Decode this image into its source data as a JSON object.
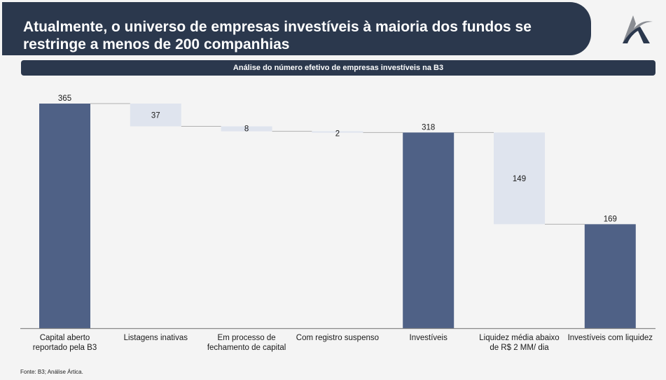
{
  "header": {
    "title": "Atualmente, o universo de empresas investíveis à maioria dos fundos se restringe a menos de 200 companhias",
    "logo_icon": "artica-logo-icon"
  },
  "subtitle": "Análise do número efetivo de empresas investíveis na B3",
  "footer": {
    "source": "Fonte: B3; Análise Ártica."
  },
  "colors": {
    "header_bg": "#2b384d",
    "total_bar": "#4f6186",
    "delta_bar": "#dfe4ee",
    "connector": "#b0b0b0",
    "axis": "#888888"
  },
  "chart_data": {
    "type": "waterfall",
    "title": "Análise do número efetivo de empresas investíveis na B3",
    "categories": [
      "Capital aberto reportado pela B3",
      "Listagens inativas",
      "Em processo de fechamento de capital",
      "Com registro suspenso",
      "Investíveis",
      "Liquidez média abaixo de R$ 2 MM/ dia",
      "Investíveis com liquidez"
    ],
    "category_lines": [
      [
        "Capital aberto",
        "reportado pela B3"
      ],
      [
        "Listagens inativas"
      ],
      [
        "Em processo de",
        "fechamento de capital"
      ],
      [
        "Com registro suspenso"
      ],
      [
        "Investíveis"
      ],
      [
        "Liquidez média abaixo",
        "de R$ 2 MM/ dia"
      ],
      [
        "Investíveis com liquidez"
      ]
    ],
    "values": [
      365,
      37,
      8,
      2,
      318,
      149,
      169
    ],
    "labels": [
      "365",
      "37",
      "8",
      "2",
      "318",
      "149",
      "169"
    ],
    "kinds": [
      "total",
      "decrease",
      "decrease",
      "decrease",
      "total",
      "decrease",
      "total"
    ],
    "ylim": [
      0,
      365
    ],
    "xlabel": "",
    "ylabel": "",
    "grid": false,
    "legend": "none"
  }
}
